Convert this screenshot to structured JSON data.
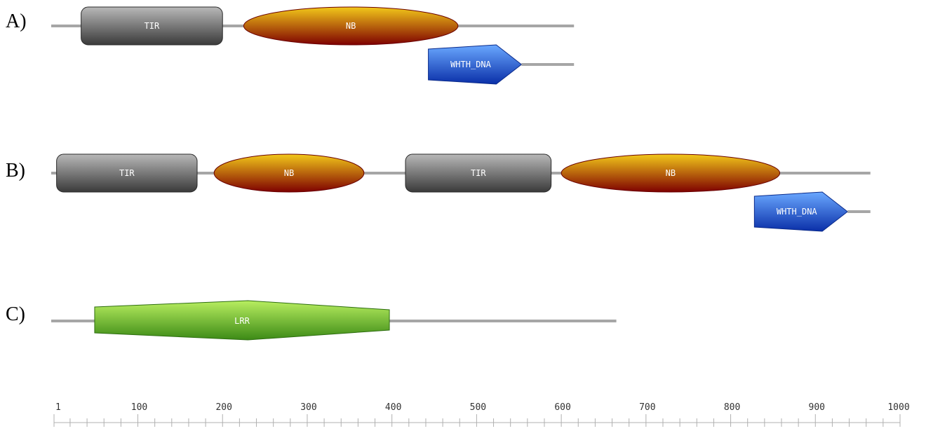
{
  "figure": {
    "proteins": [
      {
        "label": "A)",
        "domains": [
          {
            "name": "TIR",
            "shape": "rounded-rect",
            "start": 33,
            "end": 200
          },
          {
            "name": "NB",
            "shape": "ellipse",
            "start": 225,
            "end": 478
          },
          {
            "name": "WHTH_DNA",
            "shape": "pentagon",
            "start": 443,
            "end": 553,
            "lower": true
          }
        ],
        "length": 615
      },
      {
        "label": "B)",
        "domains": [
          {
            "name": "TIR",
            "shape": "rounded-rect",
            "start": 4,
            "end": 170
          },
          {
            "name": "NB",
            "shape": "ellipse",
            "start": 190,
            "end": 367
          },
          {
            "name": "TIR",
            "shape": "rounded-rect",
            "start": 416,
            "end": 588
          },
          {
            "name": "NB",
            "shape": "ellipse",
            "start": 600,
            "end": 858
          },
          {
            "name": "WHTH_DNA",
            "shape": "pentagon",
            "start": 828,
            "end": 938,
            "lower": true
          }
        ],
        "length": 965
      },
      {
        "label": "C)",
        "domains": [
          {
            "name": "LRR",
            "shape": "hexagon",
            "start": 49,
            "end": 397
          }
        ],
        "length": 665
      }
    ],
    "colors": {
      "backbone": "#a6a6a6",
      "TIR": [
        "#b8b8b8",
        "#3a3a3a"
      ],
      "NB": [
        "#f2c81a",
        "#7e0000"
      ],
      "WHTH_DNA": [
        "#6aa8ff",
        "#0a2fa8"
      ],
      "LRR": [
        "#b8ee60",
        "#3c8a16"
      ]
    },
    "scale": {
      "min": 1,
      "max": 1000,
      "major_step": 100,
      "minor_step": 20,
      "tick_labels": [
        "1",
        "100",
        "200",
        "300",
        "400",
        "500",
        "600",
        "700",
        "800",
        "900",
        "1000"
      ]
    }
  }
}
